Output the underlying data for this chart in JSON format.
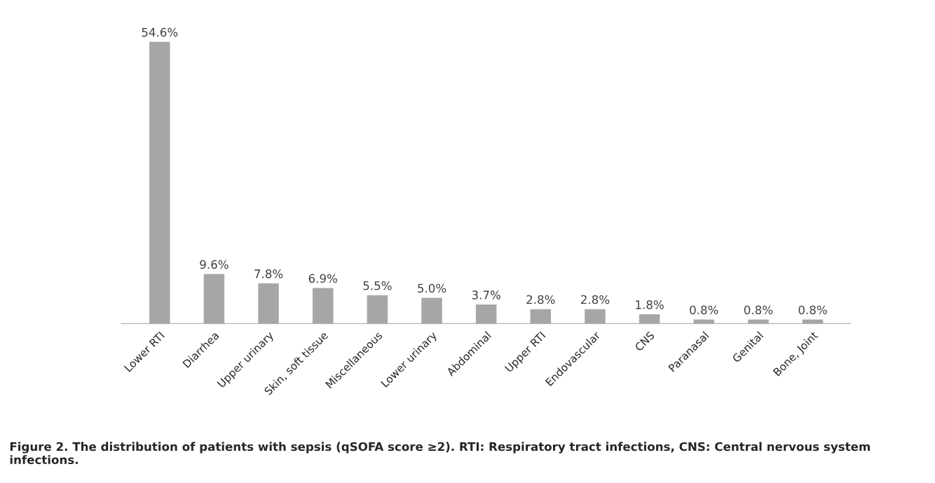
{
  "chart_data": {
    "type": "bar",
    "categories": [
      "Lower RTI",
      "Diarrhea",
      "Upper urinary",
      "Skin, soft tissue",
      "Miscellaneous",
      "Lower urinary",
      "Abdominal",
      "Upper RTI",
      "Endovascular",
      "CNS",
      "Paranasal",
      "Genital",
      "Bone, Joint"
    ],
    "values": [
      54.6,
      9.6,
      7.8,
      6.9,
      5.5,
      5.0,
      3.7,
      2.8,
      2.8,
      1.8,
      0.8,
      0.8,
      0.8
    ],
    "value_labels": [
      "54.6%",
      "9.6%",
      "7.8%",
      "6.9%",
      "5.5%",
      "5.0%",
      "3.7%",
      "2.8%",
      "2.8%",
      "1.8%",
      "0.8%",
      "0.8%",
      "0.8%"
    ],
    "color": "#a6a6a6",
    "tick_labels": "x",
    "grid": false,
    "annotations": [
      "Figure 2. The distribution of patients with sepsis (qSOFA score ≥2). RTI: Respiratory tract infections, CNS: Central nervous system infections."
    ]
  }
}
